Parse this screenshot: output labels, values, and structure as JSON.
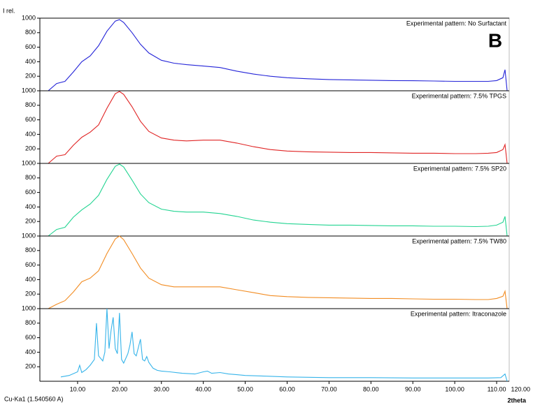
{
  "chart_data": [
    {
      "type": "line",
      "y_label": "I rel.",
      "annotation": "B",
      "x": [
        3,
        5,
        7,
        9,
        11,
        13,
        15,
        17,
        19,
        20,
        21,
        23,
        25,
        27,
        30,
        33,
        36,
        40,
        44,
        48,
        52,
        56,
        60,
        65,
        70,
        75,
        80,
        85,
        90,
        95,
        100,
        105,
        108,
        110,
        111.5,
        112,
        112.5
      ],
      "series": [
        {
          "name": "Experimental pattern: No Surfactant",
          "color": "#2424d8",
          "values": [
            0,
            100,
            130,
            260,
            400,
            480,
            620,
            820,
            960,
            980,
            940,
            800,
            640,
            520,
            420,
            380,
            360,
            340,
            320,
            270,
            230,
            200,
            180,
            165,
            155,
            150,
            145,
            140,
            138,
            135,
            130,
            130,
            130,
            140,
            180,
            290,
            0
          ]
        }
      ],
      "xlim": [
        1,
        113
      ],
      "ylim": [
        0,
        1000
      ],
      "yticks": [
        200,
        400,
        600,
        800,
        1000
      ]
    },
    {
      "type": "line",
      "x": [
        3,
        5,
        7,
        9,
        11,
        13,
        15,
        17,
        19,
        20,
        21,
        23,
        25,
        27,
        30,
        33,
        36,
        40,
        44,
        48,
        52,
        56,
        60,
        65,
        70,
        75,
        80,
        85,
        90,
        95,
        100,
        105,
        108,
        110,
        111.5,
        112,
        112.5
      ],
      "series": [
        {
          "name": "Experimental pattern: 7.5% TPGS",
          "color": "#e02424",
          "values": [
            0,
            100,
            120,
            250,
            360,
            430,
            530,
            760,
            960,
            990,
            950,
            780,
            580,
            440,
            350,
            320,
            310,
            320,
            320,
            280,
            230,
            190,
            170,
            160,
            155,
            150,
            150,
            145,
            140,
            140,
            135,
            135,
            140,
            150,
            190,
            260,
            0
          ]
        }
      ],
      "xlim": [
        1,
        113
      ],
      "ylim": [
        0,
        1000
      ],
      "yticks": [
        200,
        400,
        600,
        800,
        1000
      ]
    },
    {
      "type": "line",
      "x": [
        3,
        5,
        7,
        9,
        11,
        13,
        15,
        17,
        19,
        20,
        21,
        23,
        25,
        27,
        30,
        33,
        36,
        40,
        44,
        48,
        52,
        56,
        60,
        65,
        70,
        75,
        80,
        85,
        90,
        95,
        100,
        105,
        108,
        110,
        111.5,
        112,
        112.5
      ],
      "series": [
        {
          "name": "Experimental pattern: 7.5% SP20",
          "color": "#22d491",
          "values": [
            0,
            90,
            120,
            260,
            360,
            440,
            560,
            780,
            960,
            990,
            950,
            770,
            580,
            460,
            370,
            340,
            330,
            330,
            310,
            270,
            220,
            190,
            170,
            160,
            150,
            150,
            145,
            140,
            140,
            135,
            135,
            130,
            135,
            150,
            190,
            270,
            0
          ]
        }
      ],
      "xlim": [
        1,
        113
      ],
      "ylim": [
        0,
        1000
      ],
      "yticks": [
        200,
        400,
        600,
        800,
        1000
      ]
    },
    {
      "type": "line",
      "x": [
        3,
        5,
        7,
        9,
        11,
        13,
        15,
        17,
        19,
        20,
        21,
        23,
        25,
        27,
        30,
        33,
        36,
        40,
        44,
        48,
        52,
        56,
        60,
        65,
        70,
        75,
        80,
        85,
        90,
        95,
        100,
        105,
        108,
        110,
        111.5,
        112,
        112.5
      ],
      "series": [
        {
          "name": "Experimental pattern: 7.5% TW80",
          "color": "#f28c22",
          "values": [
            0,
            60,
            110,
            230,
            370,
            420,
            520,
            760,
            960,
            1000,
            950,
            760,
            560,
            420,
            330,
            300,
            300,
            300,
            300,
            260,
            220,
            180,
            165,
            155,
            150,
            145,
            140,
            140,
            135,
            130,
            130,
            125,
            125,
            140,
            170,
            240,
            0
          ]
        }
      ],
      "xlim": [
        1,
        113
      ],
      "ylim": [
        0,
        1000
      ],
      "yticks": [
        200,
        400,
        600,
        800,
        1000
      ]
    },
    {
      "type": "line",
      "x_label": "2theta",
      "source": "Cu-Ka1 (1.540560 A)",
      "x": [
        6,
        8,
        10,
        10.5,
        11,
        12,
        13,
        14,
        14.5,
        15,
        16,
        16.5,
        17,
        17.5,
        18,
        18.5,
        19,
        19.5,
        20,
        20.5,
        21,
        22,
        22.5,
        23,
        23.5,
        24,
        25,
        25.5,
        26,
        26.5,
        27,
        28,
        29,
        30,
        32,
        35,
        38,
        40,
        41,
        42,
        44,
        46,
        48,
        50,
        55,
        60,
        70,
        80,
        90,
        100,
        108,
        111,
        112,
        112.5
      ],
      "series": [
        {
          "name": "Experimental pattern: Itraconazole",
          "color": "#36b4ea",
          "values": [
            60,
            80,
            130,
            220,
            120,
            160,
            220,
            300,
            800,
            350,
            280,
            400,
            1000,
            450,
            700,
            880,
            450,
            380,
            940,
            300,
            250,
            380,
            500,
            680,
            380,
            350,
            580,
            300,
            280,
            340,
            260,
            180,
            150,
            140,
            130,
            110,
            100,
            130,
            140,
            110,
            120,
            100,
            90,
            80,
            70,
            60,
            50,
            50,
            45,
            45,
            45,
            50,
            100,
            0
          ]
        }
      ],
      "xlim": [
        1,
        113
      ],
      "ylim": [
        0,
        1000
      ],
      "yticks": [
        200,
        400,
        600,
        800,
        1000
      ],
      "xticks": [
        {
          "value": 10,
          "label": "10.00"
        },
        {
          "value": 20,
          "label": "20.00"
        },
        {
          "value": 30,
          "label": "30.00"
        },
        {
          "value": 40,
          "label": "40.00"
        },
        {
          "value": 50,
          "label": "50.00"
        },
        {
          "value": 60,
          "label": "60.00"
        },
        {
          "value": 70,
          "label": "70.00"
        },
        {
          "value": 80,
          "label": "80.00"
        },
        {
          "value": 90,
          "label": "90.00"
        },
        {
          "value": 100,
          "label": "100.00"
        },
        {
          "value": 110,
          "label": "110.00"
        },
        {
          "value": 120,
          "label": "120.00"
        }
      ]
    }
  ]
}
